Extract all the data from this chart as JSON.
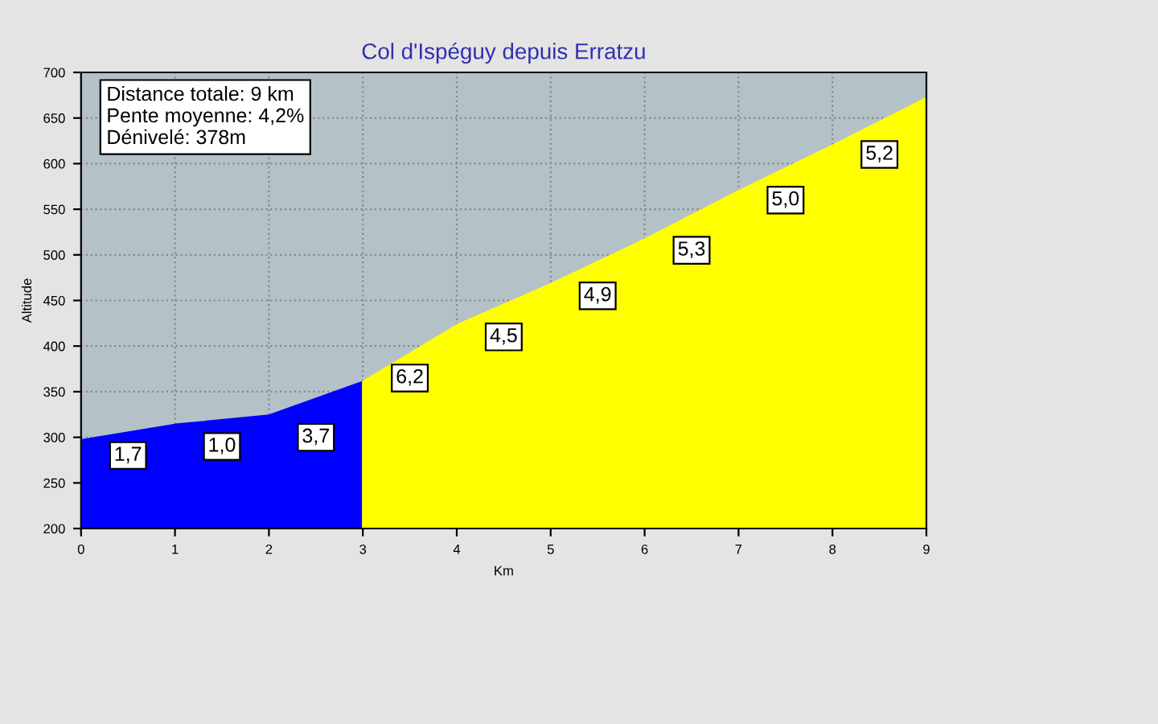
{
  "chart_data": {
    "type": "area",
    "title": "Col d'Ispéguy depuis Erratzu",
    "xlabel": "Km",
    "ylabel": "Altitude",
    "series": [
      {
        "x": [
          0,
          1,
          2,
          3
        ],
        "values": [
          297,
          314,
          324,
          361
        ],
        "color": "#0000ff"
      },
      {
        "x": [
          3,
          4,
          5,
          6,
          7,
          8,
          9
        ],
        "values": [
          361,
          423,
          468,
          517,
          570,
          620,
          672
        ],
        "color": "#ffff00"
      }
    ],
    "annotations": [
      "Distance totale: 9 km\nPente moyenne: 4,2%\nDénivelé: 378m",
      {
        "text": "1,7",
        "x": 0.5,
        "y": 280
      },
      {
        "text": "1,0",
        "x": 1.5,
        "y": 290
      },
      {
        "text": "3,7",
        "x": 2.5,
        "y": 300
      },
      {
        "text": "6,2",
        "x": 3.5,
        "y": 365
      },
      {
        "text": "4,5",
        "x": 4.5,
        "y": 410
      },
      {
        "text": "4,9",
        "x": 5.5,
        "y": 455
      },
      {
        "text": "5,3",
        "x": 6.5,
        "y": 505
      },
      {
        "text": "5,0",
        "x": 7.5,
        "y": 560
      },
      {
        "text": "5,2",
        "x": 8.5,
        "y": 610
      }
    ],
    "xlim": [
      0,
      9
    ],
    "xticks": [
      0,
      1,
      2,
      3,
      4,
      5,
      6,
      7,
      8,
      9
    ],
    "ylim": [
      200,
      700
    ],
    "yticks": [
      200,
      250,
      300,
      350,
      400,
      450,
      500,
      550,
      600,
      650,
      700
    ],
    "grid": true,
    "line_style": "solid"
  }
}
